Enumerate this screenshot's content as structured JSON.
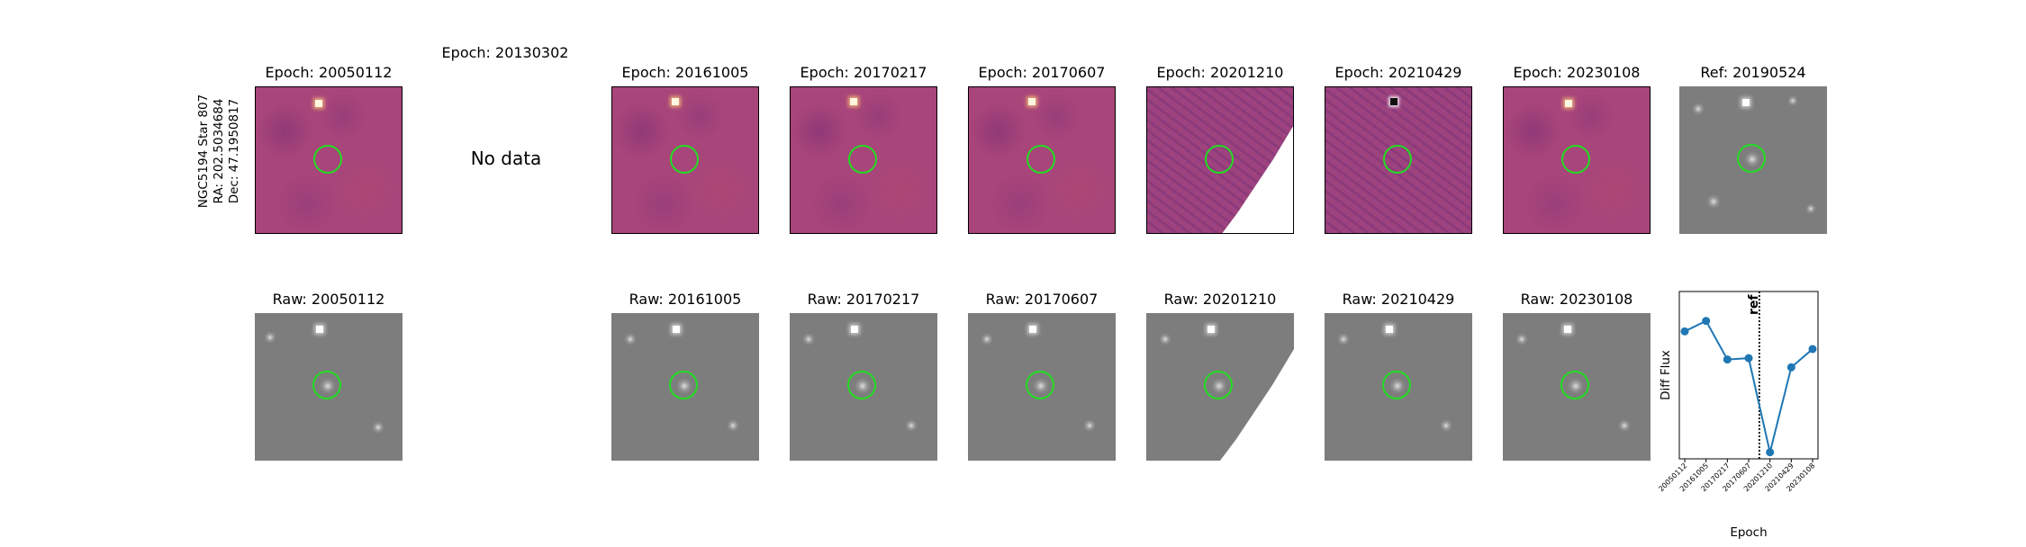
{
  "star_label": {
    "line1": "NGC5194 Star 807",
    "line2": "RA: 202.5034684",
    "line3": "Dec: 47.1950817"
  },
  "top_row": [
    {
      "title": "Epoch: 20050112"
    },
    {
      "title": "Epoch: 20130302",
      "no_data_text": "No data"
    },
    {
      "title": "Epoch: 20161005"
    },
    {
      "title": "Epoch: 20170217"
    },
    {
      "title": "Epoch: 20170607"
    },
    {
      "title": "Epoch: 20201210"
    },
    {
      "title": "Epoch: 20210429"
    },
    {
      "title": "Epoch: 20230108"
    },
    {
      "title": "Ref: 20190524"
    }
  ],
  "bottom_row": [
    {
      "title": "Raw: 20050112"
    },
    {
      "title": "Raw: 20161005"
    },
    {
      "title": "Raw: 20170217"
    },
    {
      "title": "Raw: 20170607"
    },
    {
      "title": "Raw: 20201210"
    },
    {
      "title": "Raw: 20210429"
    },
    {
      "title": "Raw: 20230108"
    }
  ],
  "colors": {
    "marker_circle": "#22dd22",
    "series_line": "#1f77b4",
    "diff_background": "#a8457a",
    "raw_background": "#7d7d7d"
  },
  "chart_data": {
    "type": "line",
    "xlabel": "Epoch",
    "ylabel": "Diff Flux",
    "categories": [
      "20050112",
      "20161005",
      "20170217",
      "20170607",
      "20201210",
      "20210429",
      "20230108"
    ],
    "values": [
      0.845,
      0.925,
      0.63,
      0.64,
      -0.08,
      0.57,
      0.71
    ],
    "ylim": [
      -0.13,
      1.15
    ],
    "yticks_visible": false,
    "ref_line": {
      "label": "ref",
      "between": [
        "20170607",
        "20201210"
      ],
      "style": "dotted"
    }
  }
}
